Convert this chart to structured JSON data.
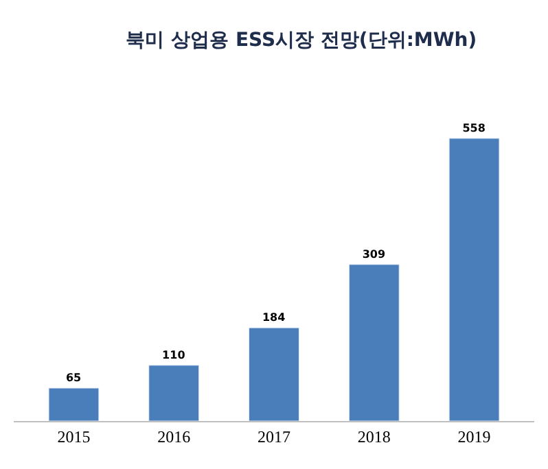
{
  "chart_data": {
    "type": "bar",
    "title": "북미 상업용 ESS시장 전망(단위:MWh)",
    "categories": [
      "2015",
      "2016",
      "2017",
      "2018",
      "2019"
    ],
    "values": [
      65,
      110,
      184,
      309,
      558
    ],
    "color": "#4a7ebb",
    "data_labels": true
  }
}
